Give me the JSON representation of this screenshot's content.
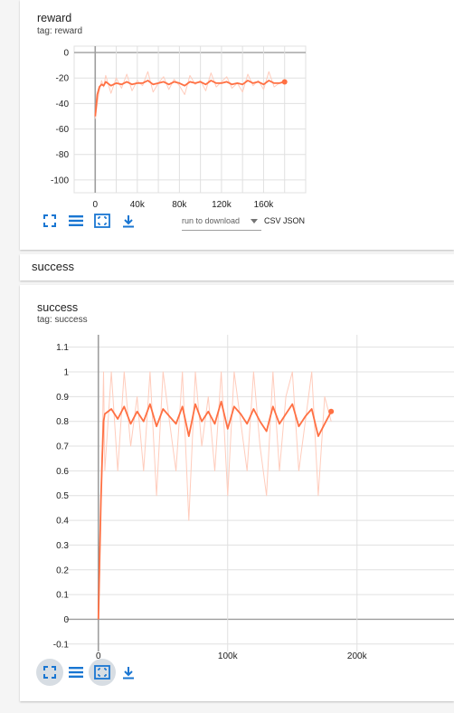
{
  "group": {
    "title": "success"
  },
  "reward_card": {
    "title": "reward",
    "tag": "tag: reward",
    "download": {
      "placeholder": "run to download",
      "csv": "CSV",
      "json": "JSON"
    }
  },
  "success_card": {
    "title": "success",
    "tag": "tag: success"
  },
  "toolbar_icons": [
    "fullscreen-icon",
    "data-table-icon",
    "fit-domain-icon",
    "download-icon"
  ],
  "colors": {
    "smoothed": "#ff7043",
    "raw": "#ffccbc",
    "grid": "#e0e0e0",
    "axis": "#9e9e9e",
    "accent": "#1976d2"
  },
  "chart_data": [
    {
      "type": "line",
      "title": "reward",
      "xlim": [
        -20000,
        200000
      ],
      "ylim": [
        -110,
        5
      ],
      "xticks": [
        0,
        40000,
        80000,
        120000,
        160000
      ],
      "xtick_labels": [
        "0",
        "40k",
        "80k",
        "120k",
        "160k"
      ],
      "yticks": [
        0,
        -20,
        -40,
        -60,
        -80,
        -100
      ],
      "ytick_labels": [
        "0",
        "-20",
        "-40",
        "-60",
        "-80",
        "-100"
      ],
      "grid": true,
      "series": [
        {
          "role": "raw",
          "x": [
            0,
            2000,
            4000,
            6000,
            8000,
            10000,
            15000,
            20000,
            25000,
            30000,
            35000,
            40000,
            45000,
            50000,
            55000,
            60000,
            65000,
            70000,
            75000,
            80000,
            85000,
            90000,
            95000,
            100000,
            105000,
            110000,
            115000,
            120000,
            125000,
            130000,
            135000,
            140000,
            145000,
            150000,
            155000,
            160000,
            165000,
            170000,
            175000,
            180000
          ],
          "y": [
            -52,
            -40,
            -30,
            -22,
            -27,
            -18,
            -32,
            -20,
            -28,
            -17,
            -30,
            -22,
            -26,
            -15,
            -31,
            -24,
            -19,
            -29,
            -21,
            -26,
            -33,
            -18,
            -25,
            -22,
            -30,
            -16,
            -27,
            -23,
            -19,
            -28,
            -24,
            -31,
            -17,
            -26,
            -22,
            -29,
            -15,
            -27,
            -24,
            -22
          ]
        },
        {
          "role": "smoothed",
          "x": [
            0,
            2000,
            4000,
            6000,
            8000,
            10000,
            15000,
            20000,
            25000,
            30000,
            35000,
            40000,
            45000,
            50000,
            55000,
            60000,
            65000,
            70000,
            75000,
            80000,
            85000,
            90000,
            95000,
            100000,
            105000,
            110000,
            115000,
            120000,
            125000,
            130000,
            135000,
            140000,
            145000,
            150000,
            155000,
            160000,
            165000,
            170000,
            175000,
            180000
          ],
          "y": [
            -50,
            -33,
            -27,
            -25,
            -26,
            -23,
            -26,
            -24,
            -25,
            -23,
            -25,
            -24,
            -24,
            -22,
            -25,
            -24,
            -23,
            -25,
            -23,
            -24,
            -26,
            -23,
            -24,
            -23,
            -25,
            -22,
            -24,
            -24,
            -23,
            -25,
            -24,
            -25,
            -22,
            -24,
            -23,
            -25,
            -22,
            -24,
            -24,
            -23
          ]
        }
      ]
    },
    {
      "type": "line",
      "title": "success",
      "xlim": [
        -25000,
        275000
      ],
      "ylim": [
        -0.13,
        1.15
      ],
      "xticks": [
        0,
        100000,
        200000
      ],
      "xtick_labels": [
        "0",
        "100k",
        "200k"
      ],
      "yticks": [
        1.1,
        1,
        0.9,
        0.8,
        0.7,
        0.6,
        0.5,
        0.4,
        0.3,
        0.2,
        0.1,
        0,
        -0.1
      ],
      "ytick_labels": [
        "1.1",
        "1",
        "0.9",
        "0.8",
        "0.7",
        "0.6",
        "0.5",
        "0.4",
        "0.3",
        "0.2",
        "0.1",
        "0",
        "-0.1"
      ],
      "grid": true,
      "series": [
        {
          "role": "raw",
          "x": [
            0,
            1000,
            2000,
            3000,
            4000,
            5000,
            10000,
            15000,
            20000,
            25000,
            30000,
            35000,
            40000,
            45000,
            50000,
            55000,
            60000,
            65000,
            70000,
            75000,
            80000,
            85000,
            90000,
            95000,
            100000,
            105000,
            110000,
            115000,
            120000,
            125000,
            130000,
            135000,
            140000,
            145000,
            150000,
            155000,
            160000,
            165000,
            170000,
            175000,
            180000
          ],
          "y": [
            0,
            0.2,
            0.5,
            0.7,
            1,
            0.6,
            1,
            0.6,
            1,
            0.7,
            0.9,
            0.6,
            1,
            0.5,
            1,
            0.8,
            0.6,
            1,
            0.4,
            1,
            0.7,
            0.9,
            0.6,
            1,
            0.5,
            1,
            0.8,
            0.6,
            1,
            0.7,
            0.5,
            1,
            0.6,
            0.9,
            1,
            0.6,
            0.8,
            1,
            0.5,
            0.9,
            0.8
          ]
        },
        {
          "role": "smoothed",
          "x": [
            0,
            1000,
            2000,
            3000,
            4000,
            5000,
            10000,
            15000,
            20000,
            25000,
            30000,
            35000,
            40000,
            45000,
            50000,
            55000,
            60000,
            65000,
            70000,
            75000,
            80000,
            85000,
            90000,
            95000,
            100000,
            105000,
            110000,
            115000,
            120000,
            125000,
            130000,
            135000,
            140000,
            145000,
            150000,
            155000,
            160000,
            165000,
            170000,
            175000,
            180000
          ],
          "y": [
            0,
            0.25,
            0.48,
            0.65,
            0.8,
            0.83,
            0.85,
            0.81,
            0.86,
            0.79,
            0.84,
            0.8,
            0.87,
            0.78,
            0.85,
            0.82,
            0.79,
            0.86,
            0.74,
            0.87,
            0.8,
            0.84,
            0.79,
            0.88,
            0.77,
            0.86,
            0.83,
            0.79,
            0.85,
            0.8,
            0.76,
            0.86,
            0.79,
            0.83,
            0.87,
            0.78,
            0.82,
            0.85,
            0.74,
            0.79,
            0.84
          ]
        }
      ]
    }
  ]
}
